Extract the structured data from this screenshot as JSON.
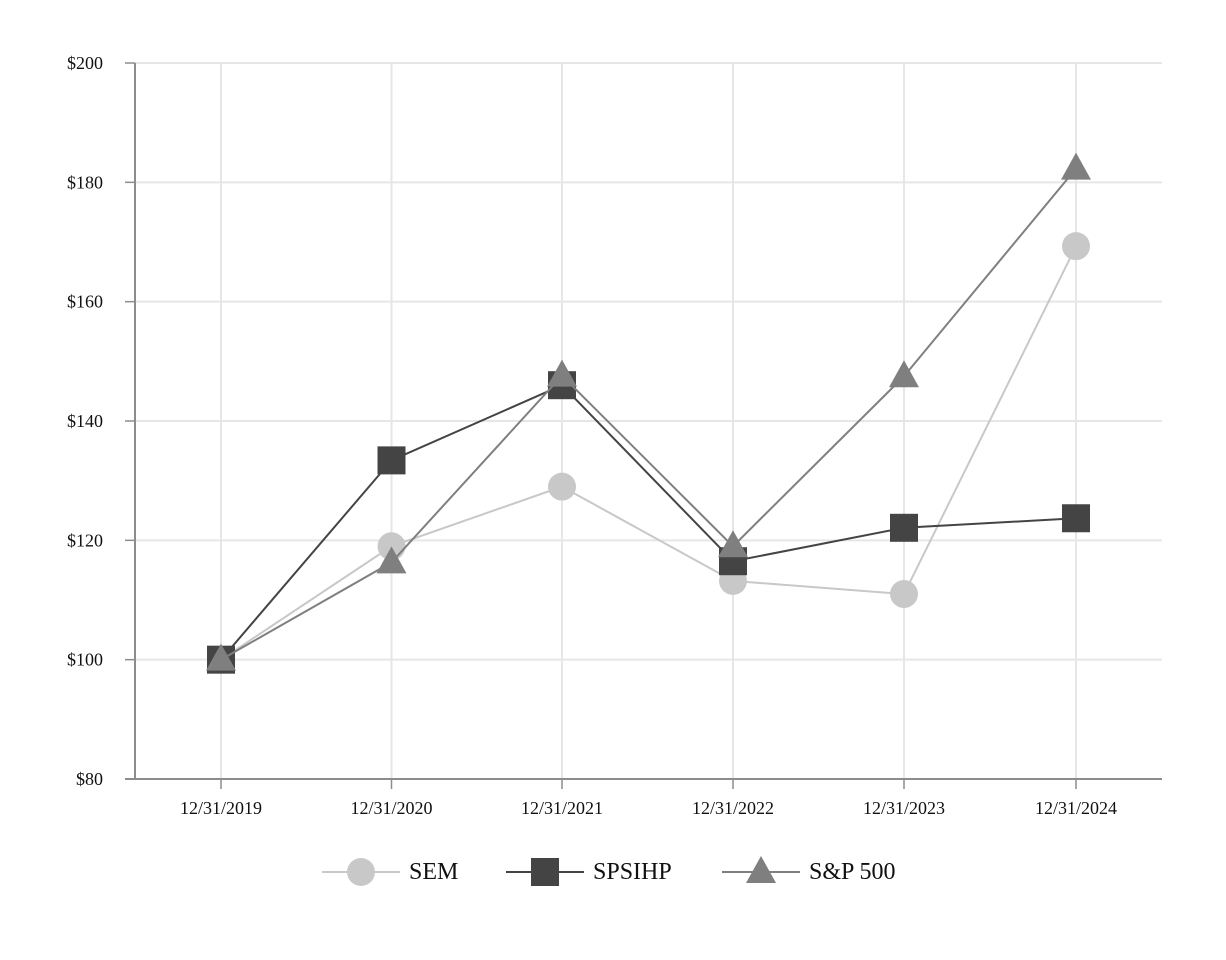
{
  "chart_data": {
    "type": "line",
    "title": "",
    "xlabel": "",
    "ylabel": "",
    "categories": [
      "12/31/2019",
      "12/31/2020",
      "12/31/2021",
      "12/31/2022",
      "12/31/2023",
      "12/31/2024"
    ],
    "y_ticks": [
      80,
      100,
      120,
      140,
      160,
      180,
      200
    ],
    "y_tick_labels": [
      "$80",
      "$100",
      "$120",
      "$140",
      "$160",
      "$180",
      "$200"
    ],
    "ylim": [
      80,
      200
    ],
    "grid": true,
    "legend_position": "bottom-center",
    "series": [
      {
        "name": "SEM",
        "marker": "circle",
        "color": "#c8c8c8",
        "values": [
          100,
          119,
          129,
          113.2,
          111,
          169.3
        ]
      },
      {
        "name": "SPSIHP",
        "marker": "square",
        "color": "#444444",
        "values": [
          100,
          133.4,
          146,
          116.5,
          122.1,
          123.7
        ]
      },
      {
        "name": "S&P 500",
        "marker": "triangle",
        "color": "#7f7f7f",
        "values": [
          100,
          116.3,
          147.6,
          119,
          147.5,
          182.3
        ]
      }
    ]
  }
}
